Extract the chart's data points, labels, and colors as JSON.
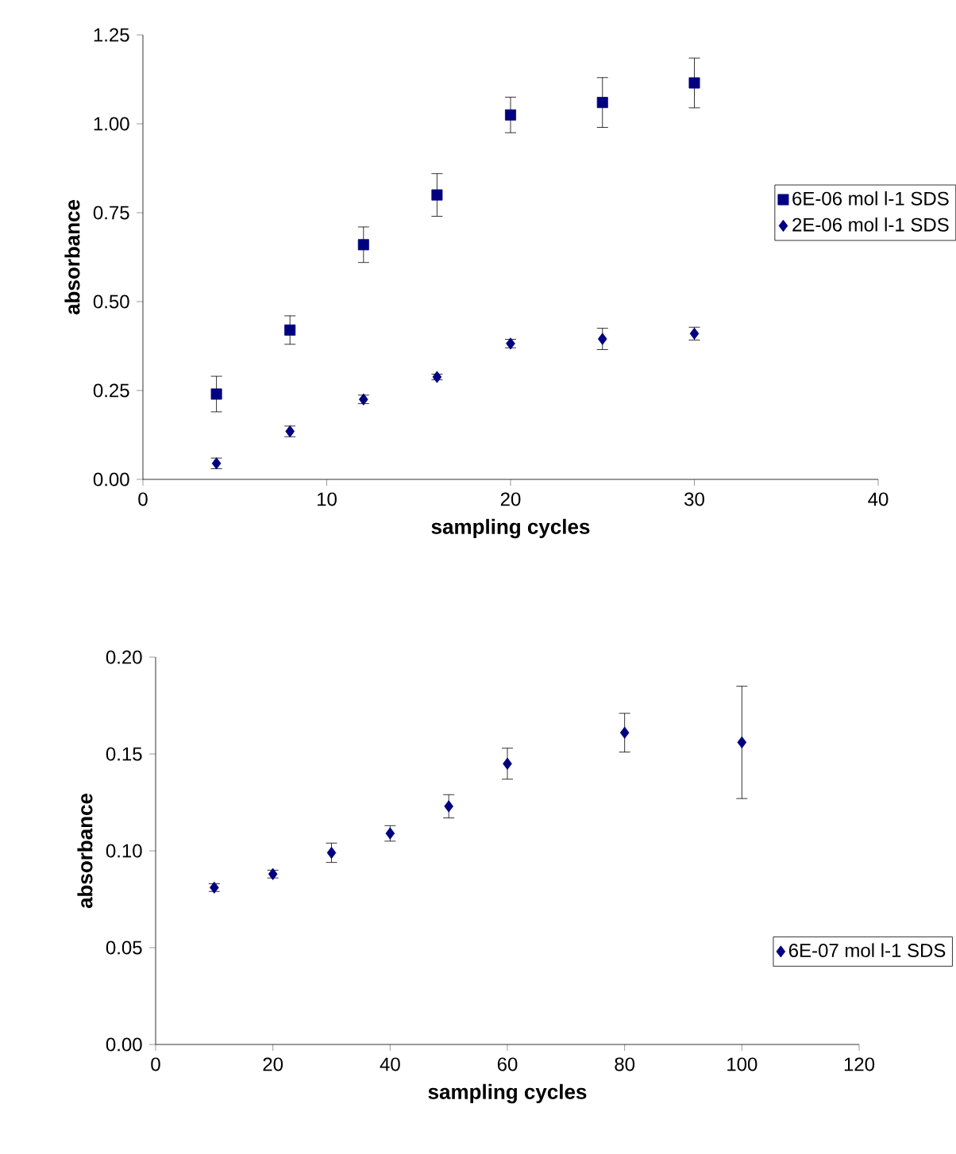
{
  "chart_data": [
    {
      "type": "scatter",
      "xlabel": "sampling cycles",
      "ylabel": "absorbance",
      "xlim": [
        0,
        40
      ],
      "xticks": [
        0,
        10,
        20,
        30,
        40
      ],
      "ylim": [
        0,
        1.25
      ],
      "yticks": [
        {
          "value": 0,
          "label": "0.00"
        },
        {
          "value": 0.25,
          "label": "0.25"
        },
        {
          "value": 0.5,
          "label": "0.50"
        },
        {
          "value": 0.75,
          "label": "0.75"
        },
        {
          "value": 1,
          "label": "1.00"
        },
        {
          "value": 1.25,
          "label": "1.25"
        }
      ],
      "legend": "right",
      "series": [
        {
          "name": "6E-06 mol l-1 SDS",
          "color": "#000080",
          "marker": "square",
          "x": [
            4,
            8,
            12,
            16,
            20,
            25,
            30
          ],
          "values": [
            0.24,
            0.42,
            0.66,
            0.8,
            1.025,
            1.06,
            1.115
          ],
          "errors": [
            0.05,
            0.04,
            0.05,
            0.06,
            0.05,
            0.07,
            0.07
          ]
        },
        {
          "name": "2E-06 mol l-1 SDS",
          "color": "#000080",
          "marker": "diamond",
          "x": [
            4,
            8,
            12,
            16,
            20,
            25,
            30
          ],
          "values": [
            0.045,
            0.135,
            0.225,
            0.288,
            0.382,
            0.395,
            0.41
          ],
          "errors": [
            0.015,
            0.015,
            0.012,
            0.008,
            0.012,
            0.03,
            0.018
          ]
        }
      ]
    },
    {
      "type": "scatter",
      "xlabel": "sampling cycles",
      "ylabel": "absorbance",
      "xlim": [
        0,
        120
      ],
      "xticks": [
        0,
        20,
        40,
        60,
        80,
        100,
        120
      ],
      "ylim": [
        0,
        0.2
      ],
      "yticks": [
        {
          "value": 0,
          "label": "0.00"
        },
        {
          "value": 0.05,
          "label": "0.05"
        },
        {
          "value": 0.1,
          "label": "0.10"
        },
        {
          "value": 0.15,
          "label": "0.15"
        },
        {
          "value": 0.2,
          "label": "0.20"
        }
      ],
      "legend": "bottom right",
      "series": [
        {
          "name": "6E-07 mol l-1 SDS",
          "color": "#000080",
          "marker": "diamond",
          "x": [
            10,
            20,
            30,
            40,
            50,
            60,
            80,
            100
          ],
          "values": [
            0.081,
            0.088,
            0.099,
            0.109,
            0.123,
            0.145,
            0.161,
            0.156
          ],
          "errors": [
            0.002,
            0.002,
            0.005,
            0.004,
            0.006,
            0.008,
            0.01,
            0.029
          ]
        }
      ]
    }
  ]
}
